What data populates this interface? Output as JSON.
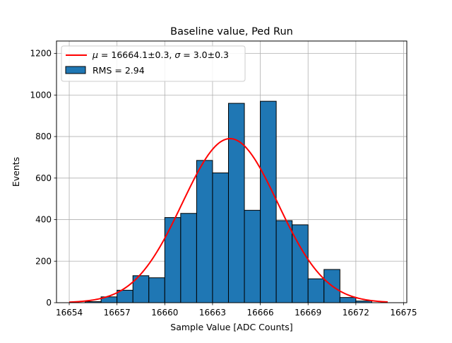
{
  "chart_data": {
    "type": "bar",
    "title": "Baseline value, Ped Run",
    "xlabel": "Sample Value [ADC Counts]",
    "ylabel": "Events",
    "xlim": [
      16653.2,
      16675.2
    ],
    "ylim": [
      0,
      1260
    ],
    "xticks": [
      16654,
      16657,
      16660,
      16663,
      16666,
      16669,
      16672,
      16675
    ],
    "yticks": [
      0,
      200,
      400,
      600,
      800,
      1000,
      1200
    ],
    "grid": true,
    "legend_position": "top-left",
    "bin_width": 1,
    "series": [
      {
        "name": "RMS = 2.94",
        "kind": "histogram",
        "color": "#1f77b4",
        "edge_color": "#000000",
        "bin_starts": [
          16655,
          16656,
          16657,
          16658,
          16659,
          16660,
          16661,
          16662,
          16663,
          16664,
          16665,
          16666,
          16667,
          16668,
          16669,
          16670,
          16671,
          16672
        ],
        "values": [
          5,
          28,
          60,
          130,
          120,
          410,
          430,
          685,
          625,
          960,
          445,
          970,
          395,
          375,
          115,
          160,
          25,
          8
        ]
      },
      {
        "name": "$\\mu = 16664.1$±0.3, $\\sigma = 3.0$±0.3",
        "kind": "gaussian-fit",
        "color": "#ff0000",
        "mu": 16664.1,
        "sigma": 3.0,
        "amplitude": 790,
        "x_range": [
          16654,
          16674
        ]
      }
    ],
    "legend": [
      {
        "text_mu": "μ",
        "text_mid": " = 16664.1±0.3, ",
        "text_sigma": "σ",
        "text_end": " = 3.0±0.3",
        "kind": "line"
      },
      {
        "text": "RMS = 2.94",
        "kind": "patch"
      }
    ]
  }
}
